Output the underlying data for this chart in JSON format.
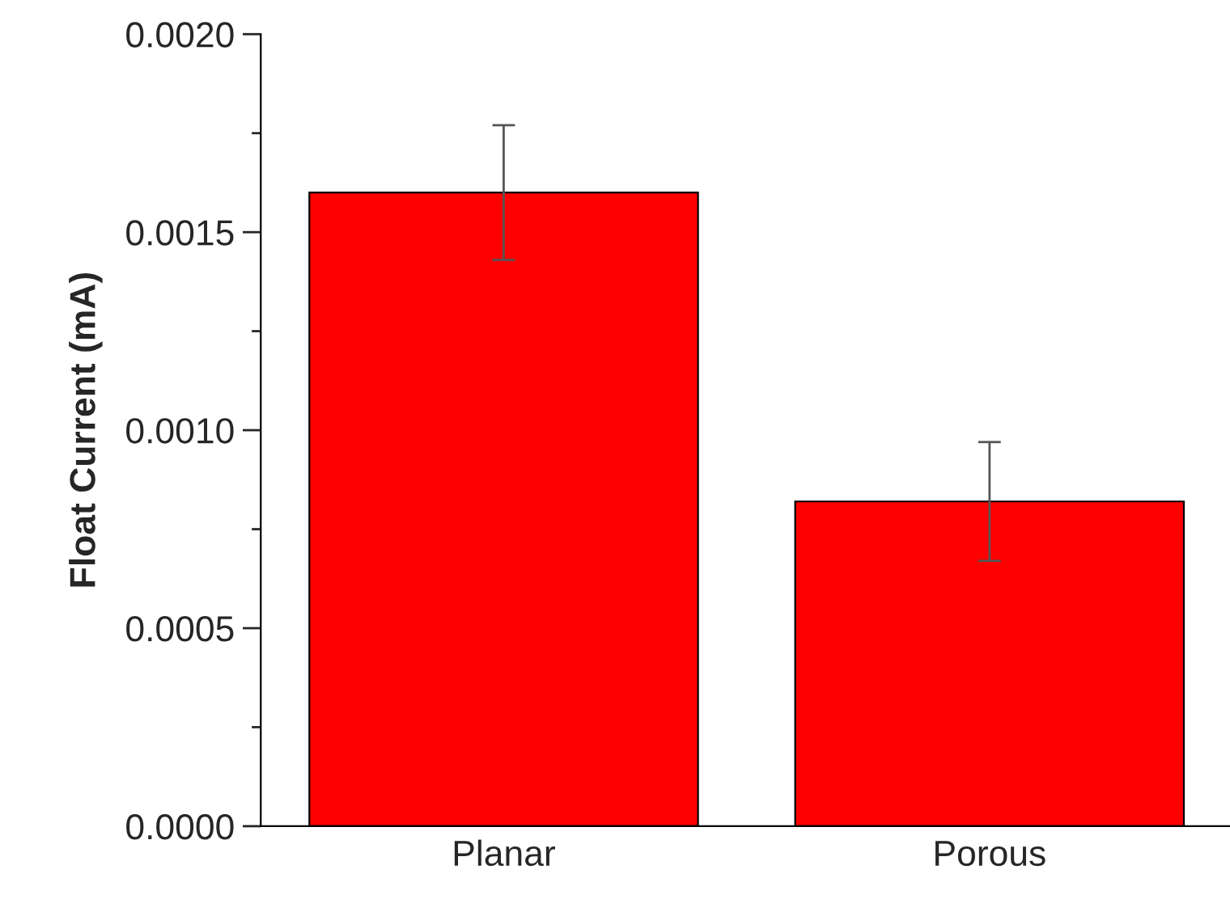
{
  "chart_data": {
    "type": "bar",
    "ylabel": "Float Current (mA)",
    "categories": [
      "Planar",
      "Porous"
    ],
    "values": [
      0.0016,
      0.00082
    ],
    "errors": [
      0.00017,
      0.00015
    ],
    "color": "#ff0000",
    "ylim": [
      0,
      0.002
    ],
    "yticks": [
      {
        "value": 0,
        "label": "0.0000"
      },
      {
        "value": 0.00025,
        "label": null
      },
      {
        "value": 0.0005,
        "label": "0.0005"
      },
      {
        "value": 0.00075,
        "label": null
      },
      {
        "value": 0.001,
        "label": "0.0010"
      },
      {
        "value": 0.00125,
        "label": null
      },
      {
        "value": 0.0015,
        "label": "0.0015"
      },
      {
        "value": 0.00175,
        "label": null
      },
      {
        "value": 0.002,
        "label": "0.0020"
      }
    ],
    "grid": false,
    "legend": false
  }
}
